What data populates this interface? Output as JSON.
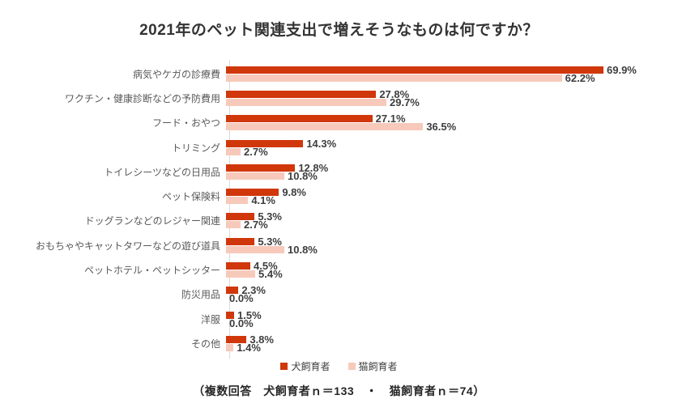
{
  "chart_data": {
    "type": "bar",
    "orientation": "horizontal",
    "title": "2021年のペット関連支出で増えそうなものは何ですか？",
    "categories": [
      "病気やケガの診療費",
      "ワクチン・健康診断などの予防費用",
      "フード・おやつ",
      "トリミング",
      "トイレシーツなどの日用品",
      "ペット保険料",
      "ドッグランなどのレジャー関連",
      "おもちゃやキャットタワーなどの遊び道具",
      "ペットホテル・ペットシッター",
      "防災用品",
      "洋服",
      "その他"
    ],
    "series": [
      {
        "name": "犬飼育者",
        "color": "#D0370A",
        "values": [
          69.9,
          27.8,
          27.1,
          14.3,
          12.8,
          9.8,
          5.3,
          5.3,
          4.5,
          2.3,
          1.5,
          3.8
        ]
      },
      {
        "name": "猫飼育者",
        "color": "#F7C9BA",
        "values": [
          62.2,
          29.7,
          36.5,
          2.7,
          10.8,
          4.1,
          2.7,
          10.8,
          5.4,
          0.0,
          0.0,
          1.4
        ]
      }
    ],
    "value_suffix": "%",
    "xlim": [
      0,
      75
    ],
    "grid": false,
    "legend_position": "bottom",
    "footnote": "（複数回答　犬飼育者ｎ＝133　・　猫飼育者ｎ＝74）"
  }
}
